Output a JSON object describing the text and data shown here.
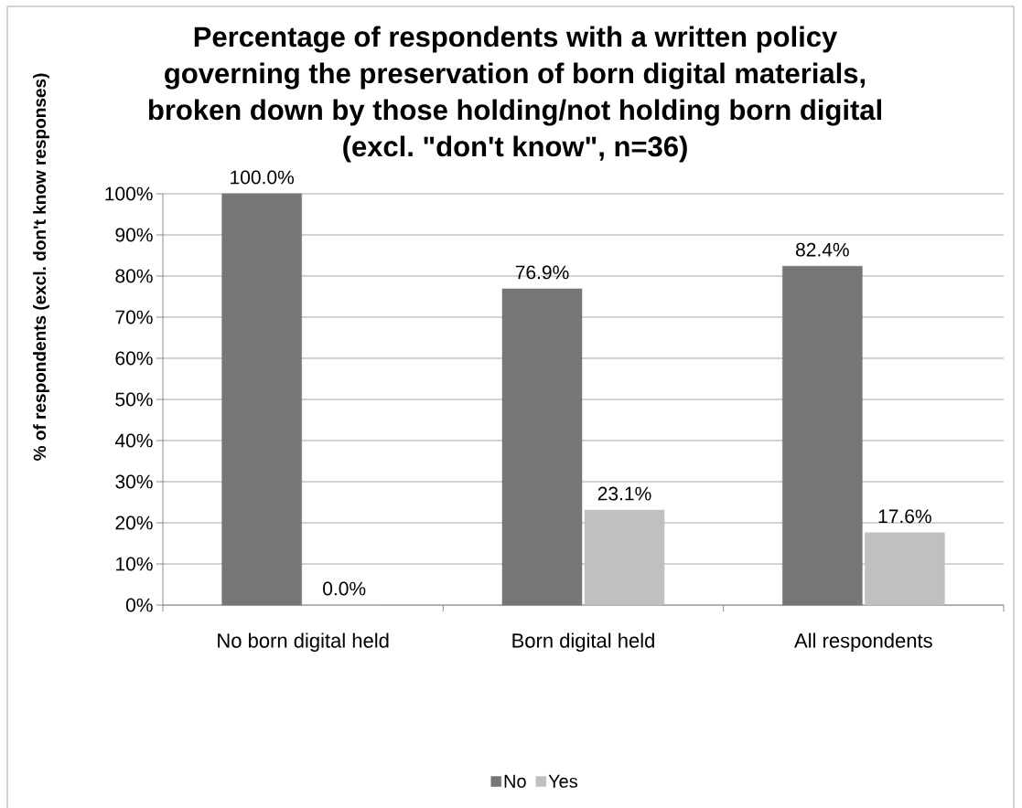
{
  "chart_data": {
    "type": "bar",
    "title": "Percentage of respondents with a written policy governing the preservation of born digital materials, broken down by those holding/not holding born digital (excl. \"don't know\", n=36)",
    "ylabel": "% of respondents (excl. don't know responses)",
    "categories": [
      "No born digital held",
      "Born digital held",
      "All respondents"
    ],
    "series": [
      {
        "name": "No",
        "color": "#767676",
        "values": [
          100,
          76.9,
          82.4
        ],
        "value_labels": [
          "100.0%",
          "76.9%",
          "82.4%"
        ]
      },
      {
        "name": "Yes",
        "color": "#c0c0c0",
        "values": [
          0,
          23.1,
          17.6
        ],
        "value_labels": [
          "0.0%",
          "23.1%",
          "17.6%"
        ]
      }
    ],
    "ylim": [
      0,
      100
    ],
    "yticks": [
      {
        "value": 0,
        "label": "0%"
      },
      {
        "value": 10,
        "label": "10%"
      },
      {
        "value": 20,
        "label": "20%"
      },
      {
        "value": 30,
        "label": "30%"
      },
      {
        "value": 40,
        "label": "40%"
      },
      {
        "value": 50,
        "label": "50%"
      },
      {
        "value": 60,
        "label": "60%"
      },
      {
        "value": 70,
        "label": "70%"
      },
      {
        "value": 80,
        "label": "80%"
      },
      {
        "value": 90,
        "label": "90%"
      },
      {
        "value": 100,
        "label": "100%"
      }
    ],
    "grid": "y",
    "legend": "bottom"
  }
}
